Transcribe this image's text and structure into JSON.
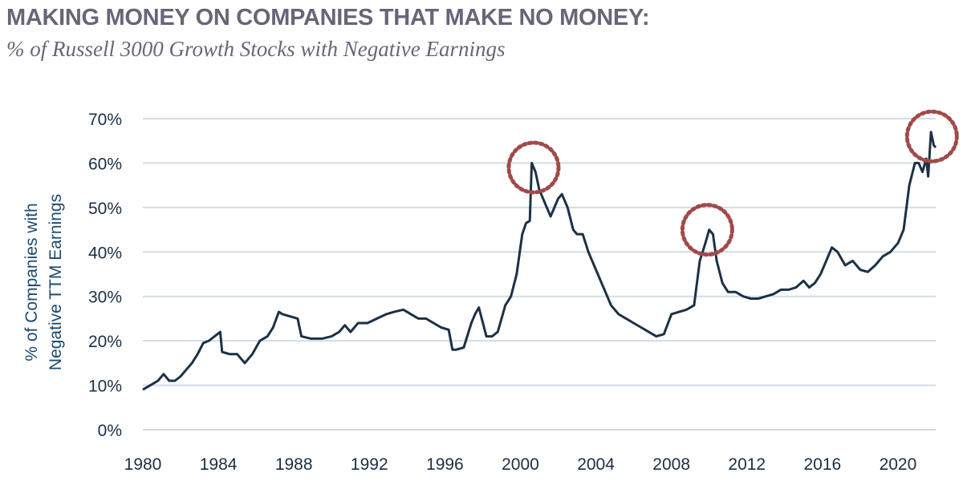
{
  "header": {
    "title": "MAKING MONEY ON COMPANIES THAT MAKE NO MONEY:",
    "subtitle": "% of Russell 3000 Growth Stocks with Negative Earnings"
  },
  "colors": {
    "title": "#6b6478",
    "line": "#1c3146",
    "grid": "#d3dbe6",
    "axis_text": "#1b2f44",
    "ylabel": "#1b4a6e",
    "circle": "#a04a4a"
  },
  "chart_data": {
    "type": "line",
    "title": "MAKING MONEY ON COMPANIES THAT MAKE NO MONEY:",
    "subtitle": "% of Russell 3000 Growth Stocks with Negative Earnings",
    "ylabel_lines": [
      "% of Companies with",
      "Negative TTM Earnings"
    ],
    "xlabel": "",
    "xlim": [
      1980,
      2022
    ],
    "ylim": [
      0,
      70
    ],
    "grid": true,
    "x_ticks": [
      1980,
      1984,
      1988,
      1992,
      1996,
      2000,
      2004,
      2008,
      2012,
      2016,
      2020
    ],
    "y_ticks": [
      0,
      10,
      20,
      30,
      40,
      50,
      60,
      70
    ],
    "y_tick_labels": [
      "0%",
      "10%",
      "20%",
      "30%",
      "40%",
      "50%",
      "60%",
      "70%"
    ],
    "series": [
      {
        "x": [
          1980.0,
          1980.4,
          1980.8,
          1981.1,
          1981.4,
          1981.7,
          1982.0,
          1982.3,
          1982.6,
          1982.9,
          1983.2,
          1983.5,
          1983.8,
          1984.1,
          1984.2,
          1984.6,
          1985.0,
          1985.4,
          1985.8,
          1986.2,
          1986.6,
          1986.9,
          1987.2,
          1987.4,
          1987.8,
          1988.2,
          1988.4,
          1988.9,
          1989.5,
          1990.0,
          1990.4,
          1990.7,
          1991.0,
          1991.4,
          1991.9,
          1992.4,
          1992.9,
          1993.3,
          1993.8,
          1994.2,
          1994.6,
          1995.0,
          1995.4,
          1995.8,
          1996.2,
          1996.4,
          1996.6,
          1997.0,
          1997.4,
          1997.6,
          1997.8,
          1998.2,
          1998.5,
          1998.8,
          1999.2,
          1999.5,
          1999.8,
          2000.1,
          2000.3,
          2000.5,
          2000.6,
          2000.8,
          2001.0,
          2001.2,
          2001.4,
          2001.6,
          2001.8,
          2002.0,
          2002.2,
          2002.5,
          2002.8,
          2003.0,
          2003.3,
          2003.6,
          2004.0,
          2004.4,
          2004.8,
          2005.2,
          2005.6,
          2006.0,
          2006.4,
          2006.8,
          2007.2,
          2007.6,
          2008.0,
          2008.4,
          2008.8,
          2009.2,
          2009.5,
          2009.8,
          2010.0,
          2010.2,
          2010.4,
          2010.7,
          2011.0,
          2011.4,
          2011.8,
          2012.2,
          2012.6,
          2013.0,
          2013.4,
          2013.8,
          2014.2,
          2014.6,
          2015.0,
          2015.3,
          2015.6,
          2015.9,
          2016.2,
          2016.5,
          2016.8,
          2017.2,
          2017.6,
          2018.0,
          2018.4,
          2018.8,
          2019.2,
          2019.6,
          2020.0,
          2020.3,
          2020.6,
          2020.9,
          2021.1,
          2021.3,
          2021.5,
          2021.6,
          2021.75,
          2021.9,
          2022.0
        ],
        "y": [
          9,
          10,
          11,
          12.5,
          11,
          11,
          12,
          13.5,
          15,
          17,
          19.5,
          20,
          21,
          22,
          17.5,
          17,
          17,
          15,
          17,
          20,
          21,
          23,
          26.5,
          26,
          25.5,
          25,
          21,
          20.5,
          20.5,
          21,
          22,
          23.5,
          22,
          24,
          24,
          25,
          26,
          26.5,
          27,
          26,
          25,
          25,
          24,
          23,
          22.5,
          18,
          18,
          18.5,
          24,
          26,
          27.5,
          21,
          21,
          22,
          28,
          30,
          35,
          44,
          46.5,
          47,
          60,
          58,
          54,
          52,
          50,
          48,
          50,
          52,
          53,
          50,
          45,
          44,
          44,
          40,
          36,
          32,
          28,
          26,
          25,
          24,
          23,
          22,
          21,
          21.5,
          26,
          26.5,
          27,
          28,
          38,
          42,
          45,
          44,
          38,
          33,
          31,
          31,
          30,
          29.5,
          29.5,
          30,
          30.5,
          31.5,
          31.5,
          32,
          33.5,
          32,
          33,
          35,
          38,
          41,
          40,
          37,
          38,
          36,
          35.5,
          37,
          39,
          40,
          42,
          45,
          55,
          60,
          60,
          58,
          61,
          57,
          67,
          64,
          63.5
        ]
      }
    ],
    "highlight_circles": [
      {
        "x": 2000.7,
        "y": 59
      },
      {
        "x": 2009.9,
        "y": 45
      },
      {
        "x": 2021.8,
        "y": 66
      }
    ]
  }
}
